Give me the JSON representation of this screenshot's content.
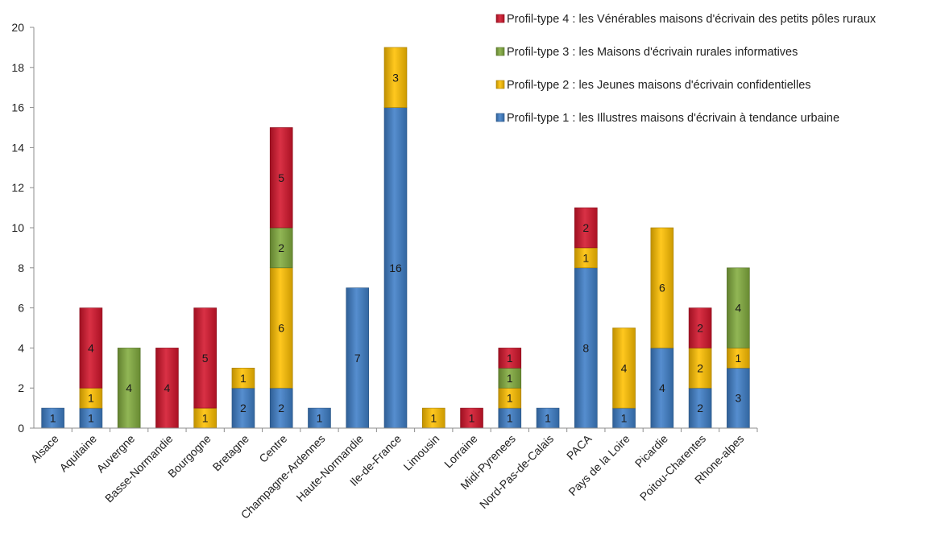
{
  "chart_data": {
    "type": "bar",
    "stacked": true,
    "categories": [
      "Alsace",
      "Aquitaine",
      "Auvergne",
      "Basse-Normandie",
      "Bourgogne",
      "Bretagne",
      "Centre",
      "Champagne-Ardennes",
      "Haute-Normandie",
      "Ile-de-France",
      "Limousin",
      "Lorraine",
      "Midi-Pyrenees",
      "Nord-Pas-de-Calais",
      "PACA",
      "Pays de la Loire",
      "Picardie",
      "Poitou-Charentes",
      "Rhone-alpes"
    ],
    "series": [
      {
        "name": "Profil-type 1 : les Illustres maisons d'écrivain à tendance urbaine",
        "color": "#3f7fc8",
        "values": [
          1,
          1,
          0,
          0,
          0,
          2,
          2,
          1,
          7,
          16,
          0,
          0,
          1,
          1,
          8,
          1,
          4,
          2,
          3
        ]
      },
      {
        "name": "Profil-type 2 : les Jeunes maisons d'écrivain confidentielles",
        "color": "#ffc000",
        "values": [
          0,
          1,
          0,
          0,
          1,
          1,
          6,
          0,
          0,
          3,
          1,
          0,
          1,
          0,
          1,
          4,
          6,
          2,
          1
        ]
      },
      {
        "name": "Profil-type 3 : les Maisons d'écrivain rurales informatives",
        "color": "#82ac3e",
        "values": [
          0,
          0,
          4,
          0,
          0,
          0,
          2,
          0,
          0,
          0,
          0,
          0,
          1,
          0,
          0,
          0,
          0,
          0,
          4
        ]
      },
      {
        "name": "Profil-type 4 : les Vénérables maisons d'écrivain des petits pôles ruraux",
        "color": "#d4152c",
        "values": [
          0,
          4,
          0,
          4,
          5,
          0,
          5,
          0,
          0,
          0,
          0,
          1,
          1,
          0,
          2,
          0,
          0,
          2,
          0
        ]
      }
    ],
    "yticks": [
      0,
      2,
      4,
      6,
      8,
      10,
      12,
      14,
      16,
      18,
      20
    ],
    "ylim": [
      0,
      20
    ],
    "xlabel": "",
    "ylabel": "",
    "title": "",
    "legend_position": "top-right",
    "legend_order": [
      3,
      2,
      1,
      0
    ],
    "grid": false
  }
}
